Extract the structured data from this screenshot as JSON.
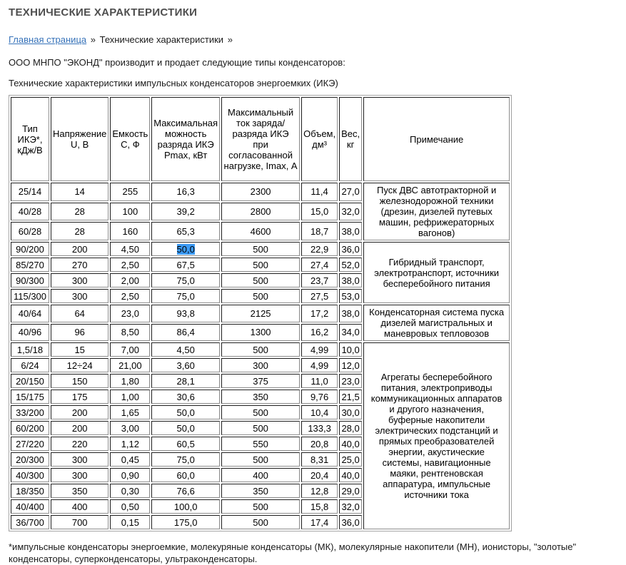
{
  "page": {
    "title": "ТЕХНИЧЕСКИЕ ХАРАКТЕРИСТИКИ",
    "intro": "ООО МНПО \"ЭКОНД\" производит и продает следующие типы конденсаторов:",
    "table_caption": "Технические характеристики импульсных конденсаторов энергоемких (ИКЭ)",
    "footnote": "*импульсные конденсаторы энергоемкие, молекуряные конденсаторы (МК), молекулярные накопители (МН), ионисторы, \"золотые\" конденсаторы, суперконденсаторы, ультраконденсаторы."
  },
  "breadcrumb": {
    "home": "Главная страница",
    "sep1": "»",
    "current": "Технические характеристики",
    "sep2": "»"
  },
  "colors": {
    "link_blue": "#3672b9",
    "selection_highlight": "#3d9bf5",
    "title_gray": "#4e4e4e",
    "table_border": "#1f1f1f"
  },
  "table": {
    "headers": [
      "Тип ИКЭ*, кДж/В",
      "Напряжение U, В",
      "Емкость С, Ф",
      "Максимальная можность разряда ИКЭ Pmax, кВт",
      "Максимальный ток заряда/разряда ИКЭ при согласованной нагрузке, Imax, А",
      "Объем, дм³",
      "Вес, кг",
      "Примечание"
    ],
    "selection": {
      "group_index": 1,
      "row_index": 0,
      "col_index": 3,
      "value": "50,0"
    },
    "groups": [
      {
        "note": "Пуск ДВС автотракторной и железнодорожной техники (дрезин, дизелей путевых машин, рефрижераторных вагонов)",
        "rows": [
          [
            "25/14",
            "14",
            "255",
            "16,3",
            "2300",
            "11,4",
            "27,0"
          ],
          [
            "40/28",
            "28",
            "100",
            "39,2",
            "2800",
            "15,0",
            "32,0"
          ],
          [
            "60/28",
            "28",
            "160",
            "65,3",
            "4600",
            "18,7",
            "38,0"
          ]
        ]
      },
      {
        "note": "Гибридный транспорт, электротранспорт, источники бесперебойного питания",
        "rows": [
          [
            "90/200",
            "200",
            "4,50",
            "50,0",
            "500",
            "22,9",
            "36,0"
          ],
          [
            "85/270",
            "270",
            "2,50",
            "67,5",
            "500",
            "27,4",
            "52,0"
          ],
          [
            "90/300",
            "300",
            "2,00",
            "75,0",
            "500",
            "23,7",
            "38,0"
          ],
          [
            "115/300",
            "300",
            "2,50",
            "75,0",
            "500",
            "27,5",
            "53,0"
          ]
        ]
      },
      {
        "note": "Конденсаторная система пуска дизелей магистральных и маневровых тепловозов",
        "rows": [
          [
            "40/64",
            "64",
            "23,0",
            "93,8",
            "2125",
            "17,2",
            "38,0"
          ],
          [
            "40/96",
            "96",
            "8,50",
            "86,4",
            "1300",
            "16,2",
            "34,0"
          ]
        ]
      },
      {
        "note": "Агрегаты бесперебойного питания, электроприводы коммуникационных аппаратов и другого назначения, буферные накопители электрических подстанций и прямых преобразователей энергии, акустические системы, навигационные маяки, рентгеновская аппаратура, импульсные источники тока",
        "rows": [
          [
            "1,5/18",
            "15",
            "7,00",
            "4,50",
            "500",
            "4,99",
            "10,0"
          ],
          [
            "6/24",
            "12÷24",
            "21,00",
            "3,60",
            "300",
            "4,99",
            "12,0"
          ],
          [
            "20/150",
            "150",
            "1,80",
            "28,1",
            "375",
            "11,0",
            "23,0"
          ],
          [
            "15/175",
            "175",
            "1,00",
            "30,6",
            "350",
            "9,76",
            "21,5"
          ],
          [
            "33/200",
            "200",
            "1,65",
            "50,0",
            "500",
            "10,4",
            "30,0"
          ],
          [
            "60/200",
            "200",
            "3,00",
            "50,0",
            "500",
            "133,3",
            "28,0"
          ],
          [
            "27/220",
            "220",
            "1,12",
            "60,5",
            "550",
            "20,8",
            "40,0"
          ],
          [
            "20/300",
            "300",
            "0,45",
            "75,0",
            "500",
            "8,31",
            "25,0"
          ],
          [
            "40/300",
            "300",
            "0,90",
            "60,0",
            "400",
            "20,4",
            "40,0"
          ],
          [
            "18/350",
            "350",
            "0,30",
            "76,6",
            "350",
            "12,8",
            "29,0"
          ],
          [
            "40/400",
            "400",
            "0,50",
            "100,0",
            "500",
            "15,8",
            "32,0"
          ],
          [
            "36/700",
            "700",
            "0,15",
            "175,0",
            "500",
            "17,4",
            "36,0"
          ]
        ]
      }
    ]
  }
}
